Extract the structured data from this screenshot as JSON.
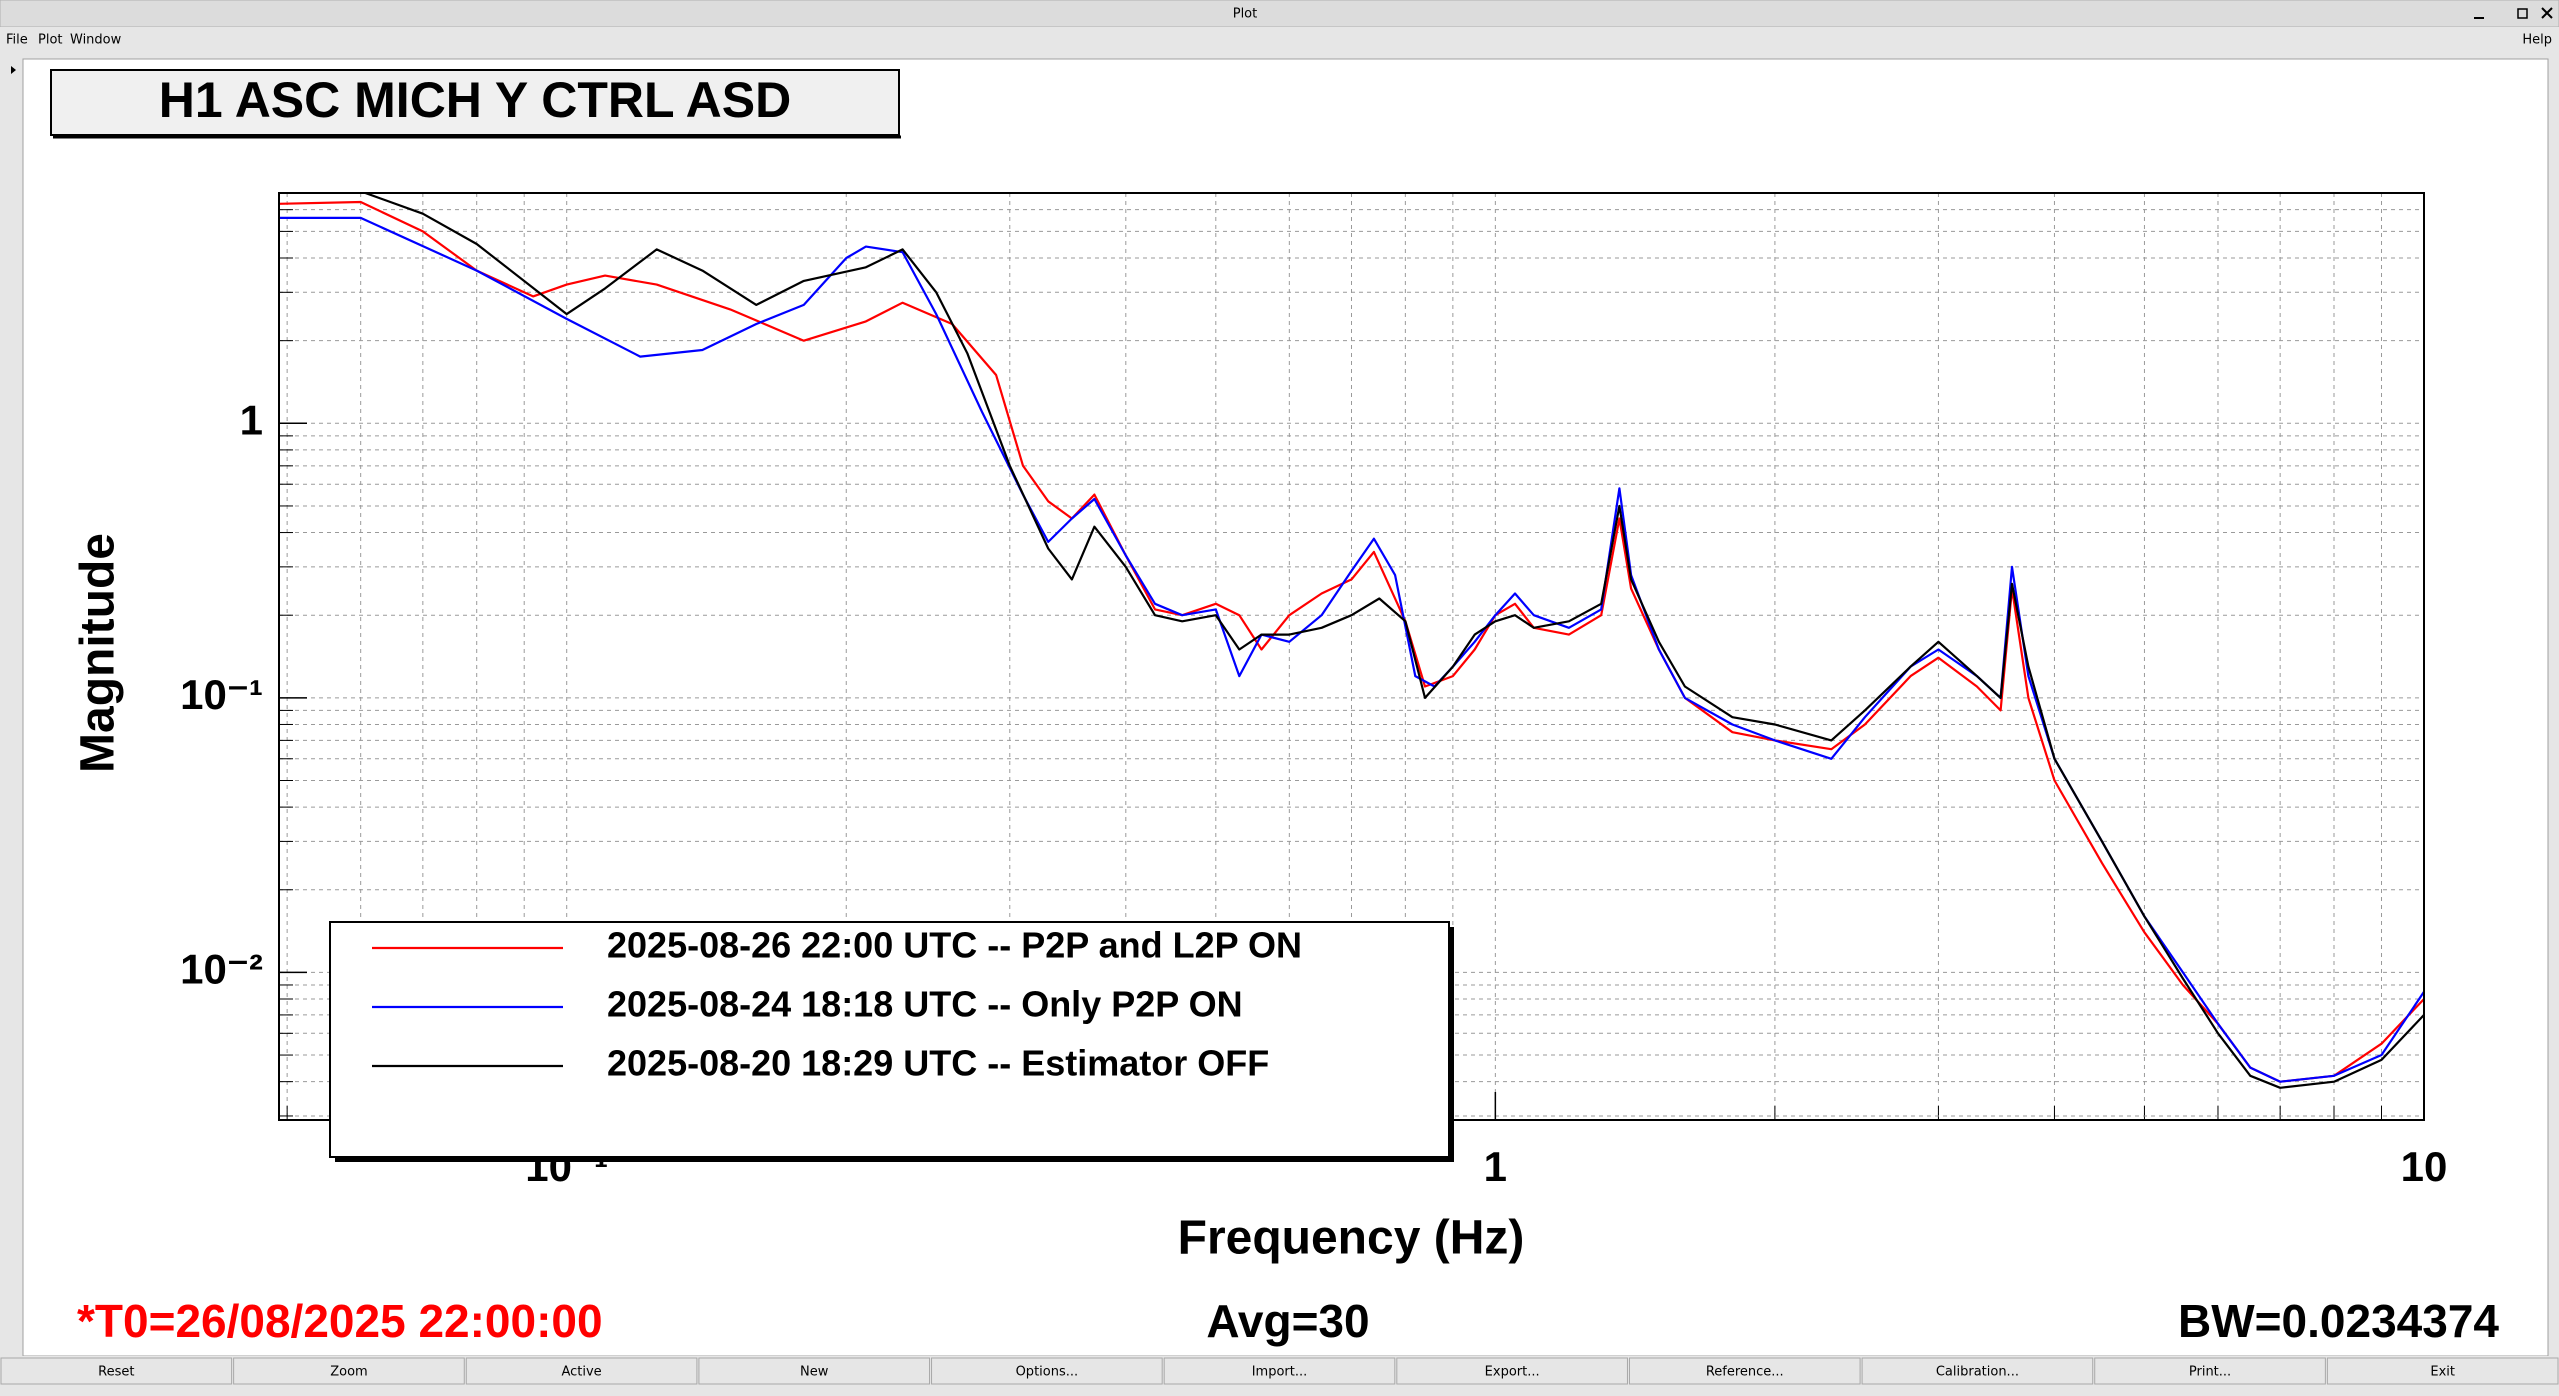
{
  "window": {
    "title": "Plot",
    "menu": [
      "File",
      "Plot",
      "Window"
    ],
    "help": "Help"
  },
  "chart_data": {
    "type": "line",
    "title": "H1 ASC MICH Y CTRL ASD",
    "x_label": "Frequency (Hz)",
    "y_label": "Magnitude",
    "xscale": "log",
    "yscale": "log",
    "grid": true,
    "legend": "lower left",
    "xlim": [
      0.049,
      10
    ],
    "ylim": [
      0.0029,
      6.9
    ],
    "xticks": [
      {
        "value": 0.1,
        "label": "10⁻¹"
      },
      1,
      10
    ],
    "yticks": [
      {
        "value": 0.01,
        "label": "10⁻²"
      },
      {
        "value": 0.1,
        "label": "10⁻¹"
      },
      1
    ],
    "xticks_minor": [
      0.05,
      0.06,
      0.07,
      0.08,
      0.09,
      0.2,
      0.3,
      0.4,
      0.5,
      0.6,
      0.7,
      0.8,
      0.9,
      2,
      3,
      4,
      5,
      6,
      7,
      8,
      9
    ],
    "yticks_minor": [
      0.003,
      0.004,
      0.005,
      0.006,
      0.007,
      0.008,
      0.009,
      0.02,
      0.03,
      0.04,
      0.05,
      0.06,
      0.07,
      0.08,
      0.09,
      0.2,
      0.3,
      0.4,
      0.5,
      0.6,
      0.7,
      0.8,
      0.9,
      2,
      3,
      4,
      5,
      6
    ],
    "series": [
      {
        "name": "2025-08-26 22:00 UTC -- P2P and L2P ON",
        "color": "#ff0000",
        "x": [
          0.049,
          0.06,
          0.07,
          0.08,
          0.092,
          0.1,
          0.11,
          0.125,
          0.15,
          0.18,
          0.21,
          0.23,
          0.26,
          0.29,
          0.31,
          0.33,
          0.35,
          0.37,
          0.4,
          0.43,
          0.46,
          0.5,
          0.53,
          0.56,
          0.6,
          0.65,
          0.7,
          0.74,
          0.8,
          0.84,
          0.9,
          0.95,
          1.0,
          1.05,
          1.1,
          1.2,
          1.3,
          1.36,
          1.4,
          1.5,
          1.6,
          1.8,
          2.0,
          2.3,
          2.5,
          2.8,
          3.0,
          3.3,
          3.5,
          3.6,
          3.75,
          4.0,
          4.5,
          5,
          5.5,
          6,
          6.5,
          7,
          8,
          9,
          10
        ],
        "values": [
          6.3,
          6.4,
          5.0,
          3.6,
          2.9,
          3.2,
          3.45,
          3.2,
          2.6,
          2.0,
          2.35,
          2.75,
          2.3,
          1.5,
          0.7,
          0.52,
          0.45,
          0.55,
          0.33,
          0.21,
          0.2,
          0.22,
          0.2,
          0.15,
          0.2,
          0.24,
          0.27,
          0.34,
          0.19,
          0.11,
          0.12,
          0.15,
          0.2,
          0.22,
          0.18,
          0.17,
          0.2,
          0.45,
          0.25,
          0.15,
          0.1,
          0.075,
          0.07,
          0.065,
          0.08,
          0.12,
          0.14,
          0.11,
          0.09,
          0.25,
          0.1,
          0.05,
          0.025,
          0.014,
          0.009,
          0.0065,
          0.0045,
          0.004,
          0.0042,
          0.0055,
          0.008
        ]
      },
      {
        "name": "2025-08-24 18:18 UTC -- Only P2P ON",
        "color": "#0000ff",
        "x": [
          0.049,
          0.06,
          0.08,
          0.1,
          0.12,
          0.14,
          0.16,
          0.18,
          0.2,
          0.21,
          0.23,
          0.25,
          0.28,
          0.31,
          0.33,
          0.35,
          0.37,
          0.4,
          0.43,
          0.46,
          0.5,
          0.53,
          0.56,
          0.6,
          0.65,
          0.7,
          0.74,
          0.78,
          0.82,
          0.86,
          0.9,
          0.95,
          1.0,
          1.05,
          1.1,
          1.2,
          1.3,
          1.36,
          1.4,
          1.5,
          1.6,
          1.8,
          2.0,
          2.3,
          2.5,
          2.8,
          3.0,
          3.3,
          3.5,
          3.6,
          3.75,
          4.0,
          4.5,
          5,
          5.5,
          6,
          6.5,
          7,
          8,
          9,
          10
        ],
        "values": [
          5.6,
          5.6,
          3.6,
          2.4,
          1.75,
          1.85,
          2.3,
          2.7,
          4.0,
          4.4,
          4.2,
          2.5,
          1.1,
          0.55,
          0.37,
          0.45,
          0.53,
          0.33,
          0.22,
          0.2,
          0.21,
          0.12,
          0.17,
          0.16,
          0.2,
          0.29,
          0.38,
          0.28,
          0.12,
          0.11,
          0.13,
          0.16,
          0.2,
          0.24,
          0.2,
          0.18,
          0.21,
          0.58,
          0.28,
          0.15,
          0.1,
          0.08,
          0.07,
          0.06,
          0.085,
          0.13,
          0.15,
          0.12,
          0.1,
          0.3,
          0.12,
          0.06,
          0.03,
          0.016,
          0.01,
          0.0065,
          0.0045,
          0.004,
          0.0042,
          0.005,
          0.0085
        ]
      },
      {
        "name": "2025-08-20 18:29 UTC -- Estimator OFF",
        "color": "#000000",
        "x": [
          0.049,
          0.06,
          0.07,
          0.08,
          0.1,
          0.11,
          0.125,
          0.14,
          0.16,
          0.18,
          0.21,
          0.23,
          0.25,
          0.27,
          0.3,
          0.33,
          0.35,
          0.37,
          0.4,
          0.43,
          0.46,
          0.5,
          0.53,
          0.56,
          0.6,
          0.65,
          0.7,
          0.75,
          0.8,
          0.84,
          0.9,
          0.95,
          1.0,
          1.05,
          1.1,
          1.2,
          1.3,
          1.36,
          1.4,
          1.5,
          1.6,
          1.8,
          2.0,
          2.3,
          2.5,
          2.8,
          3.0,
          3.3,
          3.5,
          3.6,
          3.75,
          4.0,
          4.5,
          5,
          5.5,
          6,
          6.5,
          7,
          8,
          9,
          10
        ],
        "values": [
          7.0,
          7.0,
          5.8,
          4.5,
          2.5,
          3.1,
          4.3,
          3.6,
          2.7,
          3.3,
          3.7,
          4.3,
          3.0,
          1.8,
          0.7,
          0.35,
          0.27,
          0.42,
          0.3,
          0.2,
          0.19,
          0.2,
          0.15,
          0.17,
          0.17,
          0.18,
          0.2,
          0.23,
          0.19,
          0.1,
          0.13,
          0.17,
          0.19,
          0.2,
          0.18,
          0.19,
          0.22,
          0.5,
          0.27,
          0.16,
          0.11,
          0.085,
          0.08,
          0.07,
          0.09,
          0.13,
          0.16,
          0.12,
          0.1,
          0.26,
          0.13,
          0.06,
          0.03,
          0.016,
          0.0095,
          0.006,
          0.0042,
          0.0038,
          0.004,
          0.0048,
          0.007
        ]
      }
    ]
  },
  "status": {
    "t0": "*T0=26/08/2025 22:00:00",
    "avg": "Avg=30",
    "bw": "BW=0.0234374"
  },
  "buttons": [
    "Reset",
    "Zoom",
    "Active",
    "New",
    "Options...",
    "Import...",
    "Export...",
    "Reference...",
    "Calibration...",
    "Print...",
    "Exit"
  ]
}
